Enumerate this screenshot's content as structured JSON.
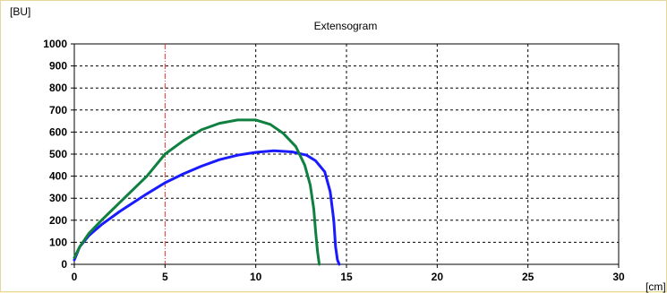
{
  "chart_data": {
    "type": "line",
    "title": "Extensogram",
    "ylabel": "[BU]",
    "xlabel": "[cm]",
    "xlim": [
      0,
      30
    ],
    "ylim": [
      0,
      1000
    ],
    "x_ticks": [
      0,
      5,
      10,
      15,
      20,
      25,
      30
    ],
    "y_ticks": [
      0,
      100,
      200,
      300,
      400,
      500,
      600,
      700,
      800,
      900,
      1000
    ],
    "grid": true,
    "grid_style": "dashed",
    "marker_line_x": 5,
    "marker_line_color": "#e03030",
    "series": [
      {
        "color": "#1a1aff",
        "x": [
          0,
          0.3,
          0.8,
          1.5,
          2.5,
          4,
          5,
          6,
          7,
          8,
          9,
          10,
          11,
          12,
          12.8,
          13.3,
          13.8,
          14.1,
          14.3,
          14.4,
          14.5,
          14.6
        ],
        "y": [
          20,
          80,
          130,
          180,
          240,
          320,
          370,
          410,
          445,
          475,
          495,
          508,
          515,
          510,
          495,
          470,
          420,
          330,
          200,
          80,
          20,
          0
        ]
      },
      {
        "color": "#108040",
        "x": [
          0,
          0.3,
          0.8,
          1.5,
          2.5,
          4,
          5,
          6,
          7,
          8,
          9,
          10,
          10.8,
          11.5,
          12.2,
          12.7,
          13.0,
          13.2,
          13.3,
          13.4,
          13.5
        ],
        "y": [
          30,
          80,
          140,
          200,
          280,
          400,
          500,
          560,
          610,
          640,
          655,
          655,
          635,
          595,
          535,
          450,
          360,
          250,
          150,
          60,
          0
        ]
      }
    ]
  }
}
